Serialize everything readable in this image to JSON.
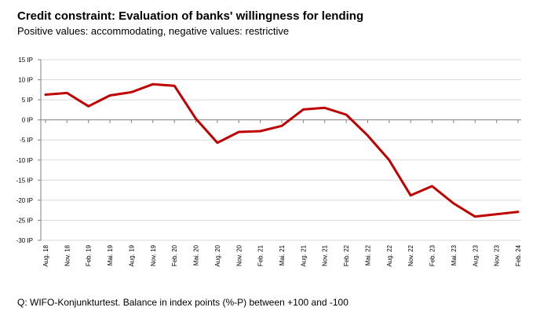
{
  "chart_data": {
    "type": "line",
    "title": "Credit constraint: Evaluation  of banks' willingness for lending",
    "subtitle": "Positive values: accommodating, negative values: restrictive",
    "source": "Q: WIFO-Konjunkturtest. Balance in index points (%-P) between  +100 and -100",
    "ylim": [
      -30,
      15
    ],
    "ytick_values": [
      15,
      10,
      5,
      0,
      -5,
      -10,
      -15,
      -20,
      -25,
      -30
    ],
    "ytick_labels": [
      "15 IP",
      "10 IP",
      "5 IP",
      "0 IP",
      "-5 IP",
      "-10 IP",
      "-15 IP",
      "-20 IP",
      "-25 IP",
      "-30 IP"
    ],
    "categories": [
      "Aug. 18",
      "Nov. 18",
      "Feb. 19",
      "Mai. 19",
      "Aug. 19",
      "Nov. 19",
      "Feb. 20",
      "Mai. 20",
      "Aug. 20",
      "Nov. 20",
      "Feb. 21",
      "Mai. 21",
      "Aug. 21",
      "Nov. 21",
      "Feb. 22",
      "Mai. 22",
      "Aug. 22",
      "Nov. 22",
      "Feb. 23",
      "Mai. 23",
      "Aug. 23",
      "Nov. 23",
      "Feb. 24"
    ],
    "series": [
      {
        "values": [
          6.3,
          6.7,
          3.4,
          6.1,
          6.9,
          8.9,
          8.5,
          0.3,
          -5.7,
          -3.0,
          -2.8,
          -1.5,
          2.6,
          3.0,
          1.3,
          -3.9,
          -10.0,
          -18.8,
          -16.5,
          -20.8,
          -24.1,
          -23.5,
          -22.9
        ],
        "color": "#c00000"
      }
    ],
    "grid": true,
    "legend": "none"
  }
}
